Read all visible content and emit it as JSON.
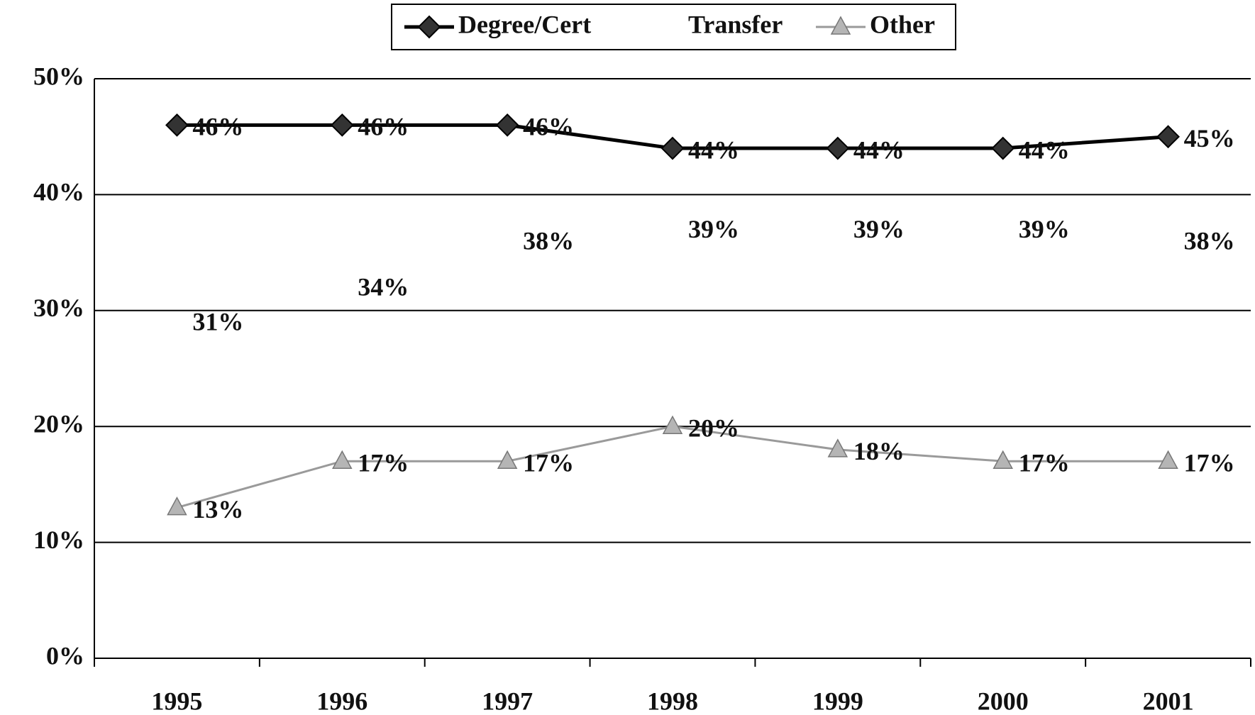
{
  "chart_data": {
    "type": "line",
    "categories": [
      "1995",
      "1996",
      "1997",
      "1998",
      "1999",
      "2000",
      "2001"
    ],
    "series": [
      {
        "name": "Degree/Cert",
        "color": "#000000",
        "marker": "diamond",
        "values": [
          46,
          46,
          46,
          44,
          44,
          44,
          45
        ],
        "value_labels": [
          "46%",
          "46%",
          "46%",
          "44%",
          "44%",
          "44%",
          "45%"
        ]
      },
      {
        "name": "Transfer",
        "color": "#ffffff",
        "marker": "none",
        "values": [
          31,
          34,
          38,
          39,
          39,
          39,
          38
        ],
        "value_labels": [
          "31%",
          "34%",
          "38%",
          "39%",
          "39%",
          "39%",
          "38%"
        ]
      },
      {
        "name": "Other",
        "color": "#9a9a9a",
        "marker": "triangle",
        "values": [
          13,
          17,
          17,
          20,
          18,
          17,
          17
        ],
        "value_labels": [
          "13%",
          "17%",
          "17%",
          "20%",
          "18%",
          "17%",
          "17%"
        ]
      }
    ],
    "ylim": [
      0,
      50
    ],
    "yticks": [
      {
        "value": 0,
        "label": "0%"
      },
      {
        "value": 10,
        "label": "10%"
      },
      {
        "value": 20,
        "label": "20%"
      },
      {
        "value": 30,
        "label": "30%"
      },
      {
        "value": 40,
        "label": "40%"
      },
      {
        "value": 50,
        "label": "50%"
      }
    ],
    "grid": true,
    "legend": "top"
  }
}
